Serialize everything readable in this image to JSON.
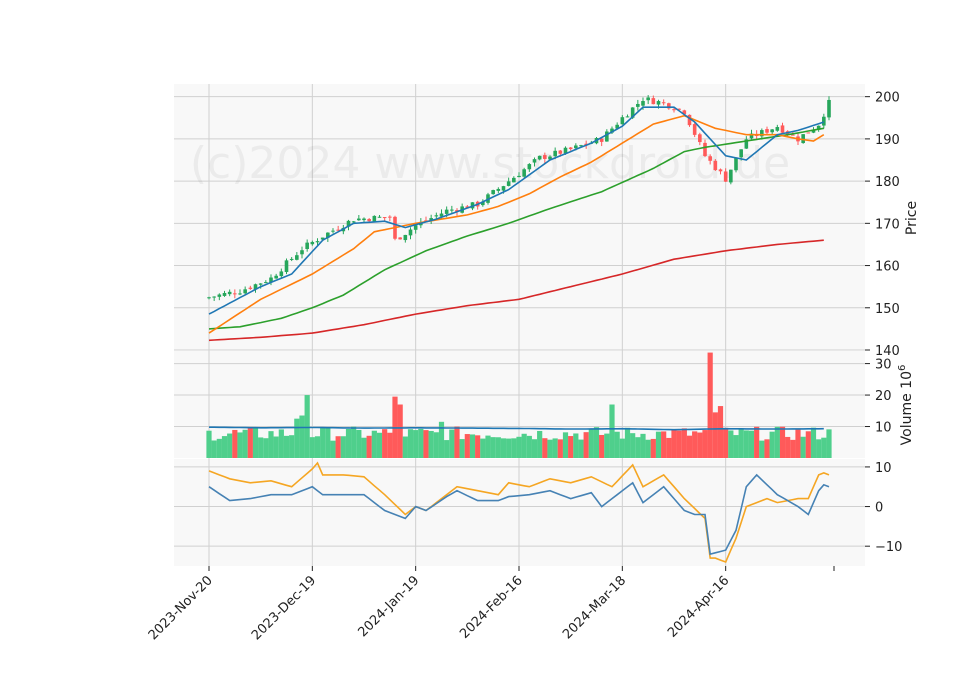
{
  "watermark": "(c)2024 www.stockdroid.de",
  "colors": {
    "panel_bg": "#f8f8f8",
    "grid": "#d0d0d0",
    "up": "#26a65b",
    "up_volume": "#4fcf8c",
    "down": "#ff5a5a",
    "ma_short": "#1f77b4",
    "ma_mid": "#ff7f0e",
    "ma_long": "#2ca02c",
    "ma_200": "#d62728",
    "vol_avg": "#1f77b4",
    "osc_fast": "#f5a623",
    "osc_slow": "#4682b4"
  },
  "chart_data": {
    "type": "candlestick-with-volume-and-oscillator",
    "x_tick_labels": [
      "2023-Nov-20",
      "2023-Dec-19",
      "2024-Jan-19",
      "2024-Feb-16",
      "2024-Mar-18",
      "2024-Apr-16"
    ],
    "x_tick_index": [
      0,
      20,
      40,
      60,
      80,
      100
    ],
    "price_panel": {
      "ylabel": "Price",
      "ylim": [
        140,
        203
      ],
      "yticks": [
        140,
        150,
        160,
        170,
        180,
        190,
        200
      ],
      "close_keypoints": [
        [
          0,
          152.5
        ],
        [
          6,
          154
        ],
        [
          12,
          157
        ],
        [
          18,
          164
        ],
        [
          22,
          167
        ],
        [
          28,
          171
        ],
        [
          35,
          171.5
        ],
        [
          36,
          166
        ],
        [
          40,
          169.5
        ],
        [
          46,
          173
        ],
        [
          52,
          174.5
        ],
        [
          58,
          180
        ],
        [
          64,
          185.5
        ],
        [
          70,
          187.5
        ],
        [
          76,
          190
        ],
        [
          80,
          195
        ],
        [
          84,
          199.5
        ],
        [
          88,
          198.5
        ],
        [
          92,
          196.5
        ],
        [
          96,
          186
        ],
        [
          100,
          180.5
        ],
        [
          104,
          190
        ],
        [
          110,
          193
        ],
        [
          114,
          190
        ],
        [
          118,
          193.5
        ],
        [
          120,
          198.5
        ]
      ],
      "ma_keypoints": {
        "short": [
          [
            0,
            148.5
          ],
          [
            10,
            155
          ],
          [
            16,
            158
          ],
          [
            22,
            166
          ],
          [
            28,
            170
          ],
          [
            34,
            170.5
          ],
          [
            38,
            169
          ],
          [
            44,
            171
          ],
          [
            52,
            174.5
          ],
          [
            58,
            178
          ],
          [
            66,
            185
          ],
          [
            74,
            189
          ],
          [
            80,
            193
          ],
          [
            84,
            197.5
          ],
          [
            90,
            197.5
          ],
          [
            94,
            194
          ],
          [
            100,
            186
          ],
          [
            104,
            185
          ],
          [
            110,
            191
          ],
          [
            114,
            192
          ],
          [
            119,
            194
          ]
        ],
        "mid": [
          [
            0,
            144
          ],
          [
            10,
            152
          ],
          [
            20,
            158
          ],
          [
            28,
            164
          ],
          [
            32,
            168
          ],
          [
            40,
            170
          ],
          [
            50,
            172
          ],
          [
            56,
            174
          ],
          [
            62,
            177
          ],
          [
            68,
            181
          ],
          [
            74,
            184.5
          ],
          [
            80,
            189
          ],
          [
            86,
            193.5
          ],
          [
            92,
            195.5
          ],
          [
            98,
            192.5
          ],
          [
            104,
            191
          ],
          [
            110,
            191
          ],
          [
            114,
            190
          ],
          [
            117,
            189.5
          ],
          [
            119,
            191
          ]
        ],
        "long": [
          [
            0,
            145
          ],
          [
            6,
            145.5
          ],
          [
            14,
            147.5
          ],
          [
            20,
            150
          ],
          [
            26,
            153
          ],
          [
            34,
            159
          ],
          [
            42,
            163.5
          ],
          [
            50,
            167
          ],
          [
            58,
            170
          ],
          [
            66,
            173.5
          ],
          [
            76,
            177.5
          ],
          [
            86,
            183
          ],
          [
            92,
            187
          ],
          [
            96,
            188
          ],
          [
            104,
            189.5
          ],
          [
            112,
            191
          ],
          [
            119,
            192.5
          ]
        ],
        "ma200": [
          [
            0,
            142.3
          ],
          [
            10,
            143
          ],
          [
            20,
            144
          ],
          [
            30,
            146
          ],
          [
            40,
            148.5
          ],
          [
            50,
            150.5
          ],
          [
            60,
            152
          ],
          [
            70,
            155
          ],
          [
            80,
            158
          ],
          [
            90,
            161.5
          ],
          [
            100,
            163.5
          ],
          [
            110,
            165
          ],
          [
            119,
            166
          ]
        ]
      }
    },
    "volume_panel": {
      "ylabel": "Volume  10^6",
      "ylim": [
        0,
        34
      ],
      "yticks": [
        10,
        20,
        30
      ],
      "avg_keypoints": [
        [
          0,
          9.8
        ],
        [
          10,
          9.6
        ],
        [
          20,
          9.7
        ],
        [
          30,
          9.5
        ],
        [
          40,
          9.6
        ],
        [
          50,
          9.5
        ],
        [
          60,
          9.4
        ],
        [
          70,
          9.2
        ],
        [
          80,
          9.3
        ],
        [
          90,
          9.0
        ],
        [
          100,
          9.3
        ],
        [
          110,
          9.2
        ],
        [
          119,
          9.3
        ]
      ],
      "spikes": [
        [
          17,
          12.5
        ],
        [
          18,
          13.5
        ],
        [
          19,
          20
        ],
        [
          36,
          19.5
        ],
        [
          37,
          17
        ],
        [
          45,
          11.5
        ],
        [
          78,
          17
        ],
        [
          97,
          33.5
        ],
        [
          98,
          14.5
        ],
        [
          99,
          16.5
        ]
      ]
    },
    "oscillator_panel": {
      "ylim": [
        -15,
        12
      ],
      "yticks": [
        -10,
        0,
        10
      ],
      "fast_keypoints": [
        [
          0,
          9
        ],
        [
          4,
          7
        ],
        [
          8,
          6
        ],
        [
          12,
          6.5
        ],
        [
          16,
          5
        ],
        [
          20,
          9.5
        ],
        [
          21,
          11
        ],
        [
          22,
          8
        ],
        [
          26,
          8
        ],
        [
          30,
          7.5
        ],
        [
          34,
          3
        ],
        [
          38,
          -2
        ],
        [
          40,
          0
        ],
        [
          42,
          -1
        ],
        [
          46,
          3
        ],
        [
          48,
          5
        ],
        [
          52,
          4
        ],
        [
          56,
          3
        ],
        [
          58,
          6
        ],
        [
          62,
          5
        ],
        [
          66,
          7
        ],
        [
          70,
          6
        ],
        [
          74,
          7.5
        ],
        [
          78,
          5
        ],
        [
          82,
          10.5
        ],
        [
          84,
          5
        ],
        [
          88,
          8
        ],
        [
          92,
          2
        ],
        [
          96,
          -3
        ],
        [
          97,
          -13
        ],
        [
          98,
          -13
        ],
        [
          100,
          -14
        ],
        [
          102,
          -8
        ],
        [
          104,
          0
        ],
        [
          108,
          2
        ],
        [
          110,
          1
        ],
        [
          114,
          2
        ],
        [
          116,
          2
        ],
        [
          118,
          8
        ],
        [
          119,
          8.5
        ],
        [
          120,
          8
        ]
      ],
      "slow_keypoints": [
        [
          0,
          5
        ],
        [
          4,
          1.5
        ],
        [
          8,
          2
        ],
        [
          12,
          3
        ],
        [
          16,
          3
        ],
        [
          20,
          5
        ],
        [
          22,
          3
        ],
        [
          26,
          3
        ],
        [
          30,
          3
        ],
        [
          34,
          -1
        ],
        [
          38,
          -3
        ],
        [
          40,
          0
        ],
        [
          42,
          -1
        ],
        [
          46,
          2.5
        ],
        [
          48,
          4
        ],
        [
          52,
          1.5
        ],
        [
          56,
          1.5
        ],
        [
          58,
          2.5
        ],
        [
          62,
          3
        ],
        [
          66,
          4
        ],
        [
          70,
          2
        ],
        [
          74,
          3.5
        ],
        [
          76,
          0
        ],
        [
          80,
          4
        ],
        [
          82,
          6
        ],
        [
          84,
          1
        ],
        [
          86,
          3
        ],
        [
          88,
          5
        ],
        [
          92,
          -1
        ],
        [
          94,
          -2
        ],
        [
          96,
          -2
        ],
        [
          97,
          -12
        ],
        [
          100,
          -11
        ],
        [
          102,
          -6
        ],
        [
          104,
          5
        ],
        [
          106,
          8
        ],
        [
          110,
          3
        ],
        [
          114,
          0
        ],
        [
          116,
          -2
        ],
        [
          118,
          4
        ],
        [
          119,
          5.5
        ],
        [
          120,
          5
        ]
      ]
    }
  }
}
